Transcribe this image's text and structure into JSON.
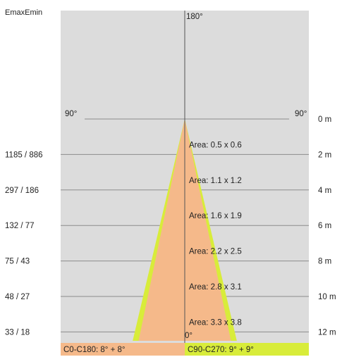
{
  "header": {
    "emax_emin_label": "EmaxEmin"
  },
  "angles": {
    "top": "180°",
    "left": "90°",
    "right": "90°",
    "bottom": "0°"
  },
  "rows": [
    {
      "distance": "0 m",
      "distance_m": 0,
      "emax_emin": "",
      "area": ""
    },
    {
      "distance": "2 m",
      "distance_m": 2,
      "emax_emin": "1185 / 886",
      "area": "Area: 0.5  x  0.6"
    },
    {
      "distance": "4 m",
      "distance_m": 4,
      "emax_emin": "297 / 186",
      "area": "Area: 1.1  x  1.2"
    },
    {
      "distance": "6 m",
      "distance_m": 6,
      "emax_emin": "132 / 77",
      "area": "Area: 1.6  x  1.9"
    },
    {
      "distance": "8 m",
      "distance_m": 8,
      "emax_emin": "75 / 43",
      "area": "Area: 2.2  x  2.5"
    },
    {
      "distance": "10 m",
      "distance_m": 10,
      "emax_emin": "48 / 27",
      "area": "Area: 2.8  x  3.1"
    },
    {
      "distance": "12 m",
      "distance_m": 12,
      "emax_emin": "33 / 18",
      "area": "Area: 3.3  x  3.8"
    }
  ],
  "beams": [
    {
      "label": "C0-C180: 8° + 8°",
      "half_angle_deg": 8,
      "color": "#f5b98a"
    },
    {
      "label": "C90-C270: 9° + 9°",
      "half_angle_deg": 9,
      "color": "#d8ec3a"
    }
  ],
  "colors": {
    "background": "#dcdcdc",
    "grid_line": "#8c8c8c",
    "axis_line": "#555555"
  }
}
